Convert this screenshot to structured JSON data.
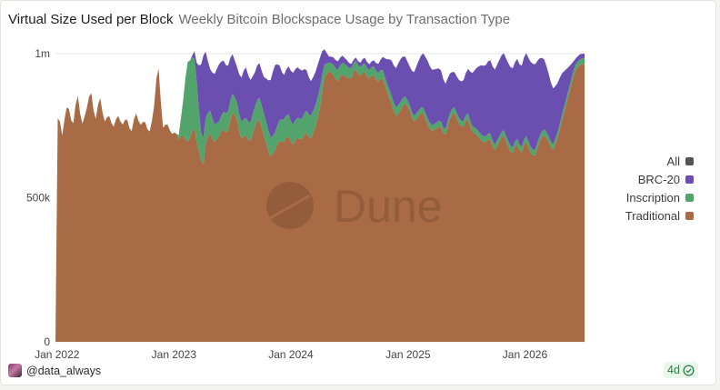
{
  "card": {
    "title": "Virtual Size Used per Block",
    "subtitle": "Weekly Bitcoin Blockspace Usage by Transaction Type",
    "watermark": "Dune",
    "author": "@data_always",
    "freshness": "4d"
  },
  "chart_data": {
    "type": "area",
    "stacked": true,
    "title": "Virtual Size Used per Block",
    "subtitle": "Weekly Bitcoin Blockspace Usage by Transaction Type",
    "xlabel": "",
    "ylabel": "",
    "x_range": [
      "2021-12-27",
      "2026-07-06"
    ],
    "ylim": [
      0,
      1000000
    ],
    "y_ticks": [
      {
        "value": 0,
        "label": "0"
      },
      {
        "value": 500000,
        "label": "500k"
      },
      {
        "value": 1000000,
        "label": "1m"
      }
    ],
    "x_ticks": [
      {
        "date": "2022-01-01",
        "label": "Jan 2022"
      },
      {
        "date": "2023-01-01",
        "label": "Jan 2023"
      },
      {
        "date": "2024-01-01",
        "label": "Jan 2024"
      },
      {
        "date": "2025-01-01",
        "label": "Jan 2025"
      },
      {
        "date": "2026-01-01",
        "label": "Jan 2026"
      }
    ],
    "grid": "horizontal",
    "legend_position": "right",
    "legend": [
      {
        "name": "All",
        "color": "#555555"
      },
      {
        "name": "BRC-20",
        "color": "#6b4fb0"
      },
      {
        "name": "Inscription",
        "color": "#52a36c"
      },
      {
        "name": "Traditional",
        "color": "#a86b45"
      }
    ],
    "series": [
      {
        "name": "Traditional",
        "color": "#a86b45",
        "points": [
          [
            "2022-01-01",
            770000
          ],
          [
            "2022-01-08",
            790000
          ],
          [
            "2022-01-15",
            700000
          ],
          [
            "2022-01-29",
            810000
          ],
          [
            "2022-02-05",
            820000
          ],
          [
            "2022-02-19",
            740000
          ],
          [
            "2022-03-05",
            870000
          ],
          [
            "2022-03-19",
            750000
          ],
          [
            "2022-04-02",
            800000
          ],
          [
            "2022-04-16",
            880000
          ],
          [
            "2022-04-30",
            760000
          ],
          [
            "2022-05-14",
            860000
          ],
          [
            "2022-05-28",
            760000
          ],
          [
            "2022-06-11",
            790000
          ],
          [
            "2022-06-25",
            740000
          ],
          [
            "2022-07-09",
            790000
          ],
          [
            "2022-07-23",
            750000
          ],
          [
            "2022-08-06",
            780000
          ],
          [
            "2022-08-20",
            720000
          ],
          [
            "2022-09-03",
            800000
          ],
          [
            "2022-09-17",
            750000
          ],
          [
            "2022-10-01",
            770000
          ],
          [
            "2022-10-15",
            720000
          ],
          [
            "2022-10-29",
            790000
          ],
          [
            "2022-11-12",
            980000
          ],
          [
            "2022-11-19",
            870000
          ],
          [
            "2022-11-26",
            740000
          ],
          [
            "2022-12-10",
            760000
          ],
          [
            "2022-12-24",
            720000
          ],
          [
            "2023-01-07",
            730000
          ],
          [
            "2023-01-14",
            700000
          ],
          [
            "2023-01-28",
            720000
          ],
          [
            "2023-02-11",
            690000
          ],
          [
            "2023-02-25",
            720000
          ],
          [
            "2023-03-04",
            760000
          ],
          [
            "2023-03-11",
            700000
          ],
          [
            "2023-03-25",
            640000
          ],
          [
            "2023-04-01",
            590000
          ],
          [
            "2023-04-08",
            680000
          ],
          [
            "2023-04-22",
            730000
          ],
          [
            "2023-05-06",
            690000
          ],
          [
            "2023-05-20",
            710000
          ],
          [
            "2023-06-03",
            740000
          ],
          [
            "2023-06-17",
            720000
          ],
          [
            "2023-07-01",
            800000
          ],
          [
            "2023-07-15",
            780000
          ],
          [
            "2023-07-29",
            700000
          ],
          [
            "2023-08-12",
            720000
          ],
          [
            "2023-08-26",
            690000
          ],
          [
            "2023-09-09",
            740000
          ],
          [
            "2023-09-23",
            780000
          ],
          [
            "2023-10-07",
            720000
          ],
          [
            "2023-10-21",
            670000
          ],
          [
            "2023-10-28",
            640000
          ],
          [
            "2023-11-11",
            660000
          ],
          [
            "2023-11-25",
            700000
          ],
          [
            "2023-12-09",
            690000
          ],
          [
            "2023-12-23",
            720000
          ],
          [
            "2024-01-06",
            680000
          ],
          [
            "2024-01-20",
            710000
          ],
          [
            "2024-02-03",
            700000
          ],
          [
            "2024-02-17",
            730000
          ],
          [
            "2024-03-02",
            700000
          ],
          [
            "2024-03-16",
            740000
          ],
          [
            "2024-03-30",
            800000
          ],
          [
            "2024-04-13",
            910000
          ],
          [
            "2024-04-27",
            940000
          ],
          [
            "2024-05-11",
            930000
          ],
          [
            "2024-05-25",
            900000
          ],
          [
            "2024-06-08",
            930000
          ],
          [
            "2024-06-22",
            920000
          ],
          [
            "2024-07-06",
            910000
          ],
          [
            "2024-07-20",
            950000
          ],
          [
            "2024-08-03",
            920000
          ],
          [
            "2024-08-17",
            940000
          ],
          [
            "2024-08-31",
            910000
          ],
          [
            "2024-09-14",
            930000
          ],
          [
            "2024-09-28",
            900000
          ],
          [
            "2024-10-12",
            920000
          ],
          [
            "2024-10-26",
            870000
          ],
          [
            "2024-11-09",
            830000
          ],
          [
            "2024-11-23",
            780000
          ],
          [
            "2024-12-07",
            800000
          ],
          [
            "2024-12-21",
            830000
          ],
          [
            "2025-01-04",
            810000
          ],
          [
            "2025-01-18",
            760000
          ],
          [
            "2025-02-01",
            780000
          ],
          [
            "2025-02-15",
            800000
          ],
          [
            "2025-03-01",
            760000
          ],
          [
            "2025-03-15",
            730000
          ],
          [
            "2025-03-29",
            740000
          ],
          [
            "2025-04-12",
            750000
          ],
          [
            "2025-04-26",
            710000
          ],
          [
            "2025-05-10",
            770000
          ],
          [
            "2025-05-24",
            800000
          ],
          [
            "2025-06-07",
            760000
          ],
          [
            "2025-06-21",
            740000
          ],
          [
            "2025-07-05",
            780000
          ],
          [
            "2025-07-19",
            730000
          ],
          [
            "2025-08-02",
            720000
          ],
          [
            "2025-08-16",
            700000
          ],
          [
            "2025-08-30",
            690000
          ],
          [
            "2025-09-13",
            710000
          ],
          [
            "2025-09-27",
            660000
          ],
          [
            "2025-10-11",
            690000
          ],
          [
            "2025-10-25",
            720000
          ],
          [
            "2025-11-08",
            680000
          ],
          [
            "2025-11-22",
            650000
          ],
          [
            "2025-12-06",
            690000
          ],
          [
            "2025-12-20",
            650000
          ],
          [
            "2026-01-03",
            700000
          ],
          [
            "2026-01-17",
            660000
          ],
          [
            "2026-01-31",
            640000
          ],
          [
            "2026-02-14",
            690000
          ],
          [
            "2026-02-28",
            720000
          ],
          [
            "2026-03-14",
            700000
          ],
          [
            "2026-03-28",
            660000
          ],
          [
            "2026-04-11",
            700000
          ],
          [
            "2026-04-25",
            760000
          ],
          [
            "2026-05-09",
            820000
          ],
          [
            "2026-05-23",
            880000
          ],
          [
            "2026-06-06",
            940000
          ],
          [
            "2026-06-20",
            960000
          ],
          [
            "2026-07-06",
            965000
          ]
        ]
      },
      {
        "name": "Inscription",
        "color": "#52a36c",
        "points": [
          [
            "2023-01-14",
            0
          ],
          [
            "2023-01-28",
            100000
          ],
          [
            "2023-02-11",
            280000
          ],
          [
            "2023-02-25",
            260000
          ],
          [
            "2023-03-11",
            230000
          ],
          [
            "2023-03-25",
            100000
          ],
          [
            "2023-04-22",
            80000
          ],
          [
            "2023-05-20",
            50000
          ],
          [
            "2023-06-17",
            70000
          ],
          [
            "2023-07-15",
            60000
          ],
          [
            "2023-08-12",
            60000
          ],
          [
            "2023-09-09",
            70000
          ],
          [
            "2023-10-07",
            80000
          ],
          [
            "2023-11-11",
            60000
          ],
          [
            "2023-12-09",
            80000
          ],
          [
            "2024-01-06",
            70000
          ],
          [
            "2024-02-03",
            70000
          ],
          [
            "2024-03-02",
            80000
          ],
          [
            "2024-03-30",
            70000
          ],
          [
            "2024-04-27",
            30000
          ],
          [
            "2024-05-25",
            40000
          ],
          [
            "2024-06-22",
            40000
          ],
          [
            "2024-07-20",
            30000
          ],
          [
            "2024-08-17",
            30000
          ],
          [
            "2024-09-14",
            30000
          ],
          [
            "2024-10-12",
            30000
          ],
          [
            "2024-11-09",
            30000
          ],
          [
            "2024-12-07",
            30000
          ],
          [
            "2025-01-04",
            20000
          ],
          [
            "2025-02-01",
            20000
          ],
          [
            "2025-03-01",
            20000
          ],
          [
            "2025-04-12",
            20000
          ],
          [
            "2025-05-24",
            20000
          ],
          [
            "2025-07-05",
            20000
          ],
          [
            "2025-08-16",
            20000
          ],
          [
            "2025-09-27",
            20000
          ],
          [
            "2025-11-08",
            20000
          ],
          [
            "2025-12-20",
            20000
          ],
          [
            "2026-01-31",
            20000
          ],
          [
            "2026-03-14",
            20000
          ],
          [
            "2026-04-25",
            20000
          ],
          [
            "2026-06-06",
            20000
          ],
          [
            "2026-07-06",
            20000
          ]
        ]
      },
      {
        "name": "BRC-20",
        "color": "#6b4fb0",
        "points": [
          [
            "2023-02-25",
            0
          ],
          [
            "2023-03-11",
            40000
          ],
          [
            "2023-04-01",
            300000
          ],
          [
            "2023-04-22",
            140000
          ],
          [
            "2023-05-20",
            200000
          ],
          [
            "2023-06-17",
            160000
          ],
          [
            "2023-07-15",
            120000
          ],
          [
            "2023-08-12",
            180000
          ],
          [
            "2023-09-09",
            120000
          ],
          [
            "2023-10-07",
            120000
          ],
          [
            "2023-11-11",
            240000
          ],
          [
            "2023-12-09",
            150000
          ],
          [
            "2024-01-06",
            180000
          ],
          [
            "2024-02-03",
            170000
          ],
          [
            "2024-03-02",
            120000
          ],
          [
            "2024-03-30",
            110000
          ],
          [
            "2024-04-27",
            20000
          ],
          [
            "2024-05-25",
            30000
          ],
          [
            "2024-06-22",
            20000
          ],
          [
            "2024-07-20",
            10000
          ],
          [
            "2024-08-17",
            20000
          ],
          [
            "2024-09-14",
            20000
          ],
          [
            "2024-10-12",
            40000
          ],
          [
            "2024-11-09",
            120000
          ],
          [
            "2024-12-07",
            150000
          ],
          [
            "2025-01-04",
            130000
          ],
          [
            "2025-02-01",
            170000
          ],
          [
            "2025-03-01",
            200000
          ],
          [
            "2025-04-12",
            180000
          ],
          [
            "2025-05-24",
            120000
          ],
          [
            "2025-07-05",
            150000
          ],
          [
            "2025-08-16",
            240000
          ],
          [
            "2025-09-27",
            260000
          ],
          [
            "2025-11-08",
            270000
          ],
          [
            "2025-12-20",
            280000
          ],
          [
            "2026-01-31",
            300000
          ],
          [
            "2026-03-14",
            220000
          ],
          [
            "2026-04-25",
            150000
          ],
          [
            "2026-05-23",
            60000
          ],
          [
            "2026-06-06",
            20000
          ],
          [
            "2026-07-06",
            15000
          ]
        ]
      }
    ]
  }
}
